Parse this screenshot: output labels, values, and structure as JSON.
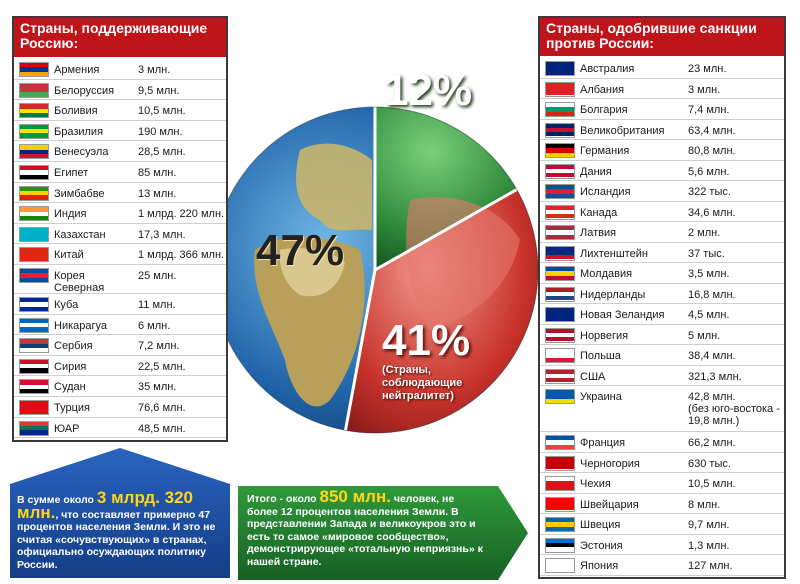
{
  "globe": {
    "pct_green": "12%",
    "pct_yellow": "47%",
    "pct_red": "41%",
    "pct_red_note": "(Страны,\nсоблюдающие\nнейтралитет)"
  },
  "left_panel": {
    "title": "Страны, поддерживающие Россию:",
    "rows": [
      {
        "country": "Армения",
        "population": "3 млн.",
        "flag": [
          "#d90012",
          "#0033a0",
          "#f2a800"
        ]
      },
      {
        "country": "Белоруссия",
        "population": "9,5 млн.",
        "flag": [
          "#c8313e",
          "#c8313e",
          "#4aa657"
        ]
      },
      {
        "country": "Боливия",
        "population": "10,5 млн.",
        "flag": [
          "#d52b1e",
          "#f9e300",
          "#007934"
        ]
      },
      {
        "country": "Бразилия",
        "population": "190 млн.",
        "flag": [
          "#009c3b",
          "#ffdf00",
          "#009c3b"
        ]
      },
      {
        "country": "Венесуэла",
        "population": "28,5 млн.",
        "flag": [
          "#ffcc00",
          "#00247d",
          "#cf142b"
        ]
      },
      {
        "country": "Египет",
        "population": "85 млн.",
        "flag": [
          "#ce1126",
          "#ffffff",
          "#000000"
        ]
      },
      {
        "country": "Зимбабве",
        "population": "13 млн.",
        "flag": [
          "#319208",
          "#ffd200",
          "#de2010"
        ]
      },
      {
        "country": "Индия",
        "population": "1 млрд. 220 млн.",
        "flag": [
          "#ff9933",
          "#ffffff",
          "#138808"
        ]
      },
      {
        "country": "Казахстан",
        "population": "17,3 млн.",
        "flag": [
          "#00afca",
          "#00afca",
          "#00afca"
        ]
      },
      {
        "country": "Китай",
        "population": "1 млрд. 366 млн.",
        "flag": [
          "#de2910",
          "#de2910",
          "#de2910"
        ]
      },
      {
        "country": "Корея\nСеверная",
        "population": "25 млн.",
        "flag": [
          "#024fa2",
          "#ed1c27",
          "#024fa2"
        ]
      },
      {
        "country": "Куба",
        "population": "11 млн.",
        "flag": [
          "#002a8f",
          "#ffffff",
          "#002a8f"
        ]
      },
      {
        "country": "Никарагуа",
        "population": "6 млн.",
        "flag": [
          "#0067c6",
          "#ffffff",
          "#0067c6"
        ]
      },
      {
        "country": "Сербия",
        "population": "7,2 млн.",
        "flag": [
          "#c6363c",
          "#0c4076",
          "#ffffff"
        ]
      },
      {
        "country": "Сирия",
        "population": "22,5 млн.",
        "flag": [
          "#ce1126",
          "#ffffff",
          "#000000"
        ]
      },
      {
        "country": "Судан",
        "population": "35 млн.",
        "flag": [
          "#d21034",
          "#ffffff",
          "#000000"
        ]
      },
      {
        "country": "Турция",
        "population": "76,6 млн.",
        "flag": [
          "#e30a17",
          "#e30a17",
          "#e30a17"
        ]
      },
      {
        "country": "ЮАР",
        "population": "48,5 млн.",
        "flag": [
          "#de3831",
          "#007a4d",
          "#002395"
        ]
      }
    ]
  },
  "right_panel": {
    "title": "Страны, одобрившие санкции против России:",
    "rows": [
      {
        "country": "Австралия",
        "population": "23 млн.",
        "flag": [
          "#00247d",
          "#00247d",
          "#00247d"
        ]
      },
      {
        "country": "Албания",
        "population": "3 млн.",
        "flag": [
          "#e41e20",
          "#e41e20",
          "#e41e20"
        ]
      },
      {
        "country": "Болгария",
        "population": "7,4 млн.",
        "flag": [
          "#ffffff",
          "#00966e",
          "#d62612"
        ]
      },
      {
        "country": "Великобритания",
        "population": "63,4 млн.",
        "flag": [
          "#012169",
          "#c8102e",
          "#012169"
        ]
      },
      {
        "country": "Германия",
        "population": "80,8 млн.",
        "flag": [
          "#000000",
          "#dd0000",
          "#ffce00"
        ]
      },
      {
        "country": "Дания",
        "population": "5,6 млн.",
        "flag": [
          "#c60c30",
          "#ffffff",
          "#c60c30"
        ]
      },
      {
        "country": "Исландия",
        "population": "322 тыс.",
        "flag": [
          "#02529c",
          "#dc1e35",
          "#02529c"
        ]
      },
      {
        "country": "Канада",
        "population": "34,6 млн.",
        "flag": [
          "#d52b1e",
          "#ffffff",
          "#d52b1e"
        ]
      },
      {
        "country": "Латвия",
        "population": "2 млн.",
        "flag": [
          "#9e3039",
          "#ffffff",
          "#9e3039"
        ]
      },
      {
        "country": "Лихтенштейн",
        "population": "37 тыс.",
        "flag": [
          "#002b7f",
          "#002b7f",
          "#ce1126"
        ]
      },
      {
        "country": "Молдавия",
        "population": "3,5 млн.",
        "flag": [
          "#0046ae",
          "#ffd200",
          "#cc092f"
        ]
      },
      {
        "country": "Нидерланды",
        "population": "16,8 млн.",
        "flag": [
          "#ae1c28",
          "#ffffff",
          "#21468b"
        ]
      },
      {
        "country": "Новая Зеландия",
        "population": "4,5 млн.",
        "flag": [
          "#00247d",
          "#00247d",
          "#00247d"
        ]
      },
      {
        "country": "Норвегия",
        "population": "5 млн.",
        "flag": [
          "#ba0c2f",
          "#ffffff",
          "#ba0c2f"
        ]
      },
      {
        "country": "Польша",
        "population": "38,4 млн.",
        "flag": [
          "#ffffff",
          "#ffffff",
          "#dc143c"
        ]
      },
      {
        "country": "США",
        "population": "321,3 млн.",
        "flag": [
          "#b22234",
          "#ffffff",
          "#b22234"
        ]
      },
      {
        "country": "Украина",
        "population": "42,8 млн.\n(без юго-востока -\n19,8 млн.)",
        "flag": [
          "#0057b7",
          "#0057b7",
          "#ffd700"
        ]
      },
      {
        "country": "Франция",
        "population": "66,2 млн.",
        "flag": [
          "#0055a4",
          "#ffffff",
          "#ef4135"
        ]
      },
      {
        "country": "Черногория",
        "population": "630 тыс.",
        "flag": [
          "#c40308",
          "#c40308",
          "#c40308"
        ]
      },
      {
        "country": "Чехия",
        "population": "10,5 млн.",
        "flag": [
          "#ffffff",
          "#d7141a",
          "#d7141a"
        ]
      },
      {
        "country": "Швейцария",
        "population": "8 млн.",
        "flag": [
          "#ff0000",
          "#ff0000",
          "#ff0000"
        ]
      },
      {
        "country": "Швеция",
        "population": "9,7 млн.",
        "flag": [
          "#006aa7",
          "#fecc00",
          "#006aa7"
        ]
      },
      {
        "country": "Эстония",
        "population": "1,3 млн.",
        "flag": [
          "#0072ce",
          "#000000",
          "#ffffff"
        ]
      },
      {
        "country": "Япония",
        "population": "127 млн.",
        "flag": [
          "#ffffff",
          "#ffffff",
          "#ffffff"
        ]
      }
    ]
  },
  "note_blue": {
    "pre": "В сумме около ",
    "highlight": "3 млрд. 320 млн.",
    "post": ", что составляет примерно 47 процентов населения Земли. И это не считая «сочувствующих» в странах, официально осуждающих политику России."
  },
  "note_green": {
    "pre": "Итого - около ",
    "highlight": "850 млн.",
    "post": " человек, не более 12 процентов населения Земли. В представлении Запада и великоукров это и есть то самое «мировое сообщество», демонстрирующее «тотальную неприязнь» к нашей стране."
  }
}
